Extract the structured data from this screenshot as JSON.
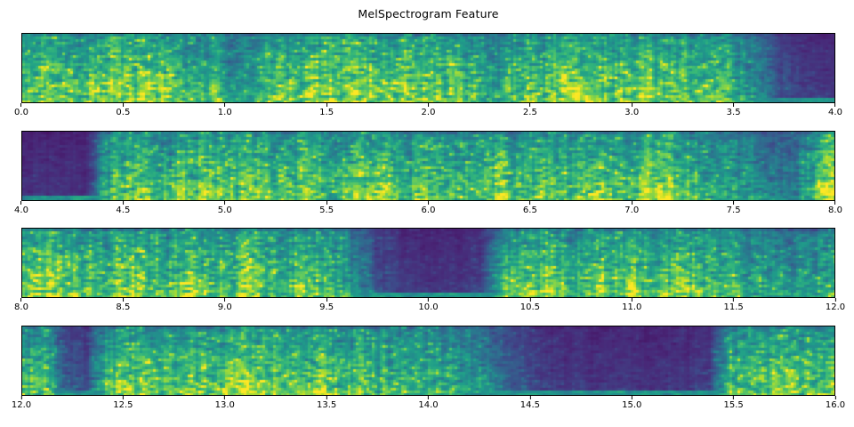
{
  "chart_data": {
    "type": "heatmap",
    "title": "MelSpectrogram Feature",
    "xlabel": "",
    "ylabel": "",
    "grid": false,
    "legend": "none",
    "colormap": "viridis",
    "colormap_stops": [
      "#440154",
      "#482878",
      "#3e4989",
      "#31688e",
      "#26828e",
      "#1f9e89",
      "#35b779",
      "#6ece58",
      "#b5de2b",
      "#fde725"
    ],
    "vertical_profile": {
      "top_gain": 0.62,
      "bottom_gain": 1.0,
      "bottom_band_floor": 0.32
    },
    "subplots": [
      {
        "name": "mel-panel-1",
        "time_range": [
          0.0,
          4.0
        ],
        "tick_step": 0.5,
        "ticks": [
          "0.0",
          "0.5",
          "1.0",
          "1.5",
          "2.0",
          "2.5",
          "3.0",
          "3.5",
          "4.0"
        ],
        "seed": 11,
        "envelope": [
          0.82,
          0.88,
          0.85,
          0.8,
          0.86,
          0.9,
          0.84,
          0.8,
          0.78,
          0.72,
          0.55,
          0.6,
          0.78,
          0.84,
          0.88,
          0.82,
          0.86,
          0.9,
          0.84,
          0.8,
          0.86,
          0.82,
          0.72,
          0.62,
          0.78,
          0.84,
          0.88,
          0.82,
          0.86,
          0.8,
          0.85,
          0.8,
          0.76,
          0.82,
          0.72,
          0.52,
          0.3,
          0.18,
          0.15,
          0.14
        ]
      },
      {
        "name": "mel-panel-2",
        "time_range": [
          4.0,
          8.0
        ],
        "tick_step": 0.5,
        "ticks": [
          "4.0",
          "4.5",
          "5.0",
          "5.5",
          "6.0",
          "6.5",
          "7.0",
          "7.5",
          "8.0"
        ],
        "seed": 22,
        "envelope": [
          0.14,
          0.13,
          0.12,
          0.13,
          0.7,
          0.88,
          0.82,
          0.76,
          0.84,
          0.88,
          0.8,
          0.86,
          0.74,
          0.82,
          0.7,
          0.76,
          0.82,
          0.72,
          0.78,
          0.8,
          0.74,
          0.7,
          0.76,
          0.82,
          0.72,
          0.76,
          0.7,
          0.76,
          0.82,
          0.78,
          0.86,
          0.82,
          0.72,
          0.66,
          0.62,
          0.55,
          0.45,
          0.42,
          0.72,
          0.88
        ]
      },
      {
        "name": "mel-panel-3",
        "time_range": [
          8.0,
          12.0
        ],
        "tick_step": 0.5,
        "ticks": [
          "8.0",
          "8.5",
          "9.0",
          "9.5",
          "10.0",
          "10.5",
          "11.0",
          "11.5",
          "12.0"
        ],
        "seed": 33,
        "envelope": [
          0.8,
          0.86,
          0.82,
          0.76,
          0.82,
          0.86,
          0.8,
          0.76,
          0.82,
          0.78,
          0.84,
          0.8,
          0.76,
          0.82,
          0.78,
          0.74,
          0.45,
          0.25,
          0.16,
          0.14,
          0.13,
          0.14,
          0.18,
          0.6,
          0.82,
          0.86,
          0.8,
          0.78,
          0.84,
          0.8,
          0.76,
          0.82,
          0.78,
          0.74,
          0.7,
          0.58,
          0.55,
          0.62,
          0.7,
          0.74
        ]
      },
      {
        "name": "mel-panel-4",
        "time_range": [
          12.0,
          16.0
        ],
        "tick_step": 0.5,
        "ticks": [
          "12.0",
          "12.5",
          "13.0",
          "13.5",
          "14.0",
          "14.5",
          "15.0",
          "15.5",
          "16.0"
        ],
        "seed": 44,
        "envelope": [
          0.75,
          0.8,
          0.3,
          0.22,
          0.72,
          0.86,
          0.8,
          0.84,
          0.8,
          0.76,
          0.82,
          0.86,
          0.8,
          0.76,
          0.8,
          0.76,
          0.8,
          0.74,
          0.7,
          0.74,
          0.68,
          0.58,
          0.48,
          0.38,
          0.26,
          0.18,
          0.15,
          0.14,
          0.14,
          0.13,
          0.12,
          0.14,
          0.15,
          0.18,
          0.72,
          0.86,
          0.8,
          0.86,
          0.8,
          0.84
        ]
      }
    ]
  }
}
